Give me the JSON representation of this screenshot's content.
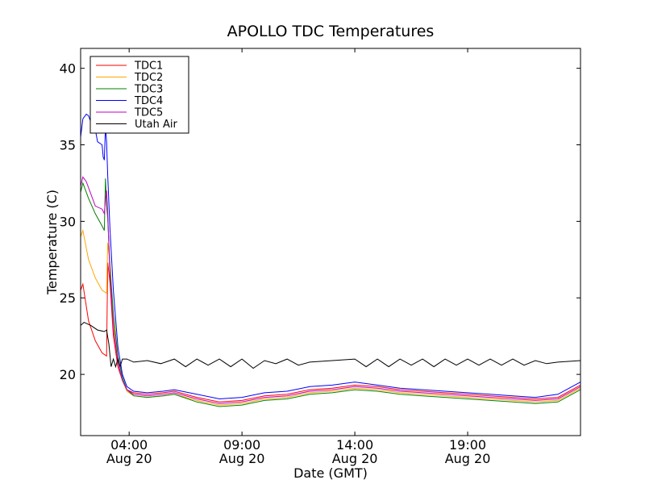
{
  "chart_data": {
    "type": "line",
    "title": "APOLLO TDC Temperatures",
    "xlabel": "Date (GMT)",
    "ylabel": "Temperature (C)",
    "x_unit": "hours since 00:00 GMT Aug 20",
    "xlim": [
      1.85,
      24.0
    ],
    "ylim": [
      16.0,
      41.3
    ],
    "yticks": [
      20,
      25,
      30,
      35,
      40
    ],
    "xticks": [
      {
        "value": 4,
        "label1": "04:00",
        "label2": "Aug 20"
      },
      {
        "value": 9,
        "label1": "09:00",
        "label2": "Aug 20"
      },
      {
        "value": 14,
        "label1": "14:00",
        "label2": "Aug 20"
      },
      {
        "value": 19,
        "label1": "19:00",
        "label2": "Aug 20"
      }
    ],
    "legend_position": "top-left",
    "series": [
      {
        "name": "TDC1",
        "color": "#ff0000",
        "x": [
          1.85,
          1.95,
          2.2,
          2.5,
          2.8,
          3.0,
          3.05,
          3.15,
          3.3,
          3.5,
          3.7,
          3.9,
          4.2,
          4.8,
          5.5,
          6.0,
          7.0,
          8.0,
          9.0,
          10.0,
          11.0,
          12.0,
          13.0,
          14.0,
          15.0,
          16.0,
          17.0,
          18.0,
          19.0,
          20.0,
          21.0,
          22.0,
          23.0,
          24.0
        ],
        "y": [
          25.5,
          25.9,
          23.5,
          22.2,
          21.4,
          21.2,
          27.3,
          26.0,
          22.5,
          20.5,
          19.6,
          19.0,
          18.8,
          18.7,
          18.8,
          18.9,
          18.5,
          18.2,
          18.3,
          18.6,
          18.7,
          19.0,
          19.1,
          19.3,
          19.2,
          19.0,
          18.9,
          18.8,
          18.7,
          18.6,
          18.5,
          18.4,
          18.5,
          19.3
        ]
      },
      {
        "name": "TDC2",
        "color": "#ffa500",
        "x": [
          1.85,
          1.95,
          2.2,
          2.5,
          2.8,
          3.0,
          3.05,
          3.15,
          3.3,
          3.5,
          3.7,
          3.9,
          4.2,
          4.8,
          5.5,
          6.0,
          7.0,
          8.0,
          9.0,
          10.0,
          11.0,
          12.0,
          13.0,
          14.0,
          15.0,
          16.0,
          17.0,
          18.0,
          19.0,
          20.0,
          21.0,
          22.0,
          23.0,
          24.0
        ],
        "y": [
          29.0,
          29.4,
          27.5,
          26.3,
          25.5,
          25.3,
          28.6,
          27.3,
          23.5,
          20.8,
          19.6,
          18.9,
          18.6,
          18.5,
          18.6,
          18.7,
          18.3,
          18.0,
          18.1,
          18.4,
          18.5,
          18.8,
          18.9,
          19.1,
          19.0,
          18.8,
          18.7,
          18.6,
          18.5,
          18.4,
          18.3,
          18.2,
          18.3,
          19.1
        ]
      },
      {
        "name": "TDC3",
        "color": "#008000",
        "x": [
          1.85,
          1.95,
          2.2,
          2.5,
          2.8,
          2.9,
          2.95,
          3.0,
          3.05,
          3.15,
          3.3,
          3.5,
          3.7,
          3.9,
          4.2,
          4.8,
          5.5,
          6.0,
          7.0,
          8.0,
          9.0,
          10.0,
          11.0,
          12.0,
          13.0,
          14.0,
          15.0,
          16.0,
          17.0,
          18.0,
          19.0,
          20.0,
          21.0,
          22.0,
          23.0,
          24.0
        ],
        "y": [
          31.9,
          32.5,
          31.5,
          30.5,
          29.7,
          29.4,
          32.8,
          31.0,
          30.2,
          27.0,
          24.0,
          21.2,
          19.8,
          19.0,
          18.6,
          18.5,
          18.6,
          18.7,
          18.2,
          17.9,
          18.0,
          18.3,
          18.4,
          18.7,
          18.8,
          19.0,
          18.9,
          18.7,
          18.6,
          18.5,
          18.4,
          18.3,
          18.2,
          18.1,
          18.2,
          19.0
        ]
      },
      {
        "name": "TDC4",
        "color": "#0000ff",
        "x": [
          1.85,
          1.95,
          2.1,
          2.2,
          2.3,
          2.5,
          2.6,
          2.8,
          2.85,
          2.9,
          2.95,
          3.0,
          3.05,
          3.15,
          3.3,
          3.5,
          3.7,
          3.9,
          4.2,
          4.8,
          5.5,
          6.0,
          7.0,
          8.0,
          9.0,
          10.0,
          11.0,
          12.0,
          13.0,
          14.0,
          15.0,
          16.0,
          17.0,
          18.0,
          19.0,
          20.0,
          21.0,
          22.0,
          23.0,
          24.0
        ],
        "y": [
          35.5,
          36.7,
          37.0,
          36.9,
          36.5,
          36.0,
          35.2,
          35.0,
          34.2,
          34.0,
          36.2,
          35.2,
          33.0,
          29.5,
          25.5,
          21.8,
          20.0,
          19.2,
          18.9,
          18.8,
          18.9,
          19.0,
          18.7,
          18.4,
          18.5,
          18.8,
          18.9,
          19.2,
          19.3,
          19.5,
          19.3,
          19.1,
          19.0,
          18.9,
          18.8,
          18.7,
          18.6,
          18.5,
          18.7,
          19.5
        ]
      },
      {
        "name": "TDC5",
        "color": "#bf00bf",
        "x": [
          1.85,
          1.95,
          2.1,
          2.3,
          2.5,
          2.8,
          2.9,
          2.95,
          3.0,
          3.05,
          3.15,
          3.3,
          3.5,
          3.7,
          3.9,
          4.2,
          4.8,
          5.5,
          6.0,
          7.0,
          8.0,
          9.0,
          10.0,
          11.0,
          12.0,
          13.0,
          14.0,
          15.0,
          16.0,
          17.0,
          18.0,
          19.0,
          20.0,
          21.0,
          22.0,
          23.0,
          24.0
        ],
        "y": [
          32.3,
          32.9,
          32.6,
          31.8,
          31.0,
          30.8,
          30.5,
          31.5,
          32.0,
          30.5,
          26.5,
          23.0,
          20.8,
          19.6,
          19.0,
          18.7,
          18.6,
          18.7,
          18.8,
          18.4,
          18.1,
          18.2,
          18.5,
          18.6,
          18.9,
          19.0,
          19.2,
          19.1,
          18.9,
          18.8,
          18.7,
          18.6,
          18.5,
          18.4,
          18.3,
          18.4,
          19.2
        ]
      },
      {
        "name": "Utah Air",
        "color": "#000000",
        "x": [
          1.85,
          2.0,
          2.3,
          2.6,
          2.9,
          3.0,
          3.1,
          3.2,
          3.3,
          3.4,
          3.5,
          3.6,
          3.7,
          3.9,
          4.2,
          4.8,
          5.4,
          6.0,
          6.5,
          7.0,
          7.5,
          8.0,
          8.5,
          9.0,
          9.5,
          10.0,
          10.5,
          11.0,
          11.5,
          12.0,
          13.0,
          14.0,
          14.5,
          15.0,
          15.5,
          16.0,
          16.5,
          17.0,
          17.5,
          18.0,
          18.5,
          19.0,
          19.5,
          20.0,
          20.5,
          21.0,
          21.5,
          22.0,
          22.5,
          23.0,
          24.0
        ],
        "y": [
          23.2,
          23.4,
          23.2,
          22.9,
          22.8,
          22.9,
          22.0,
          20.5,
          21.0,
          20.5,
          21.0,
          20.5,
          21.0,
          21.0,
          20.8,
          20.9,
          20.7,
          21.0,
          20.5,
          21.0,
          20.6,
          21.0,
          20.5,
          21.0,
          20.4,
          20.9,
          20.7,
          21.0,
          20.6,
          20.8,
          20.9,
          21.0,
          20.5,
          21.0,
          20.5,
          21.0,
          20.6,
          21.0,
          20.5,
          21.0,
          20.6,
          21.0,
          20.6,
          21.0,
          20.6,
          21.0,
          20.6,
          20.9,
          20.7,
          20.8,
          20.9
        ]
      }
    ]
  }
}
